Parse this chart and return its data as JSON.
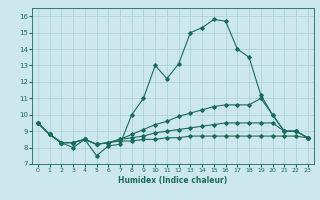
{
  "xlabel": "Humidex (Indice chaleur)",
  "xlim": [
    -0.5,
    23.5
  ],
  "ylim": [
    7,
    16.5
  ],
  "yticks": [
    7,
    8,
    9,
    10,
    11,
    12,
    13,
    14,
    15,
    16
  ],
  "xticks": [
    0,
    1,
    2,
    3,
    4,
    5,
    6,
    7,
    8,
    9,
    10,
    11,
    12,
    13,
    14,
    15,
    16,
    17,
    18,
    19,
    20,
    21,
    22,
    23
  ],
  "bg_color": "#cce8ee",
  "grid_color": "#aacdd6",
  "line_color": "#1a6b5a",
  "lines": [
    [
      9.5,
      8.8,
      8.3,
      8.0,
      8.5,
      7.5,
      8.1,
      8.2,
      10.0,
      11.0,
      13.0,
      12.2,
      13.1,
      15.0,
      15.3,
      15.8,
      15.7,
      14.0,
      13.5,
      11.2,
      10.0,
      9.0,
      9.0,
      8.6
    ],
    [
      9.5,
      8.8,
      8.3,
      8.3,
      8.5,
      8.2,
      8.3,
      8.5,
      8.8,
      9.1,
      9.4,
      9.6,
      9.9,
      10.1,
      10.3,
      10.5,
      10.6,
      10.6,
      10.6,
      11.0,
      10.0,
      9.0,
      9.0,
      8.6
    ],
    [
      9.5,
      8.8,
      8.3,
      8.3,
      8.5,
      8.2,
      8.3,
      8.5,
      8.6,
      8.7,
      8.9,
      9.0,
      9.1,
      9.2,
      9.3,
      9.4,
      9.5,
      9.5,
      9.5,
      9.5,
      9.5,
      9.0,
      9.0,
      8.6
    ],
    [
      9.5,
      8.8,
      8.3,
      8.3,
      8.5,
      8.2,
      8.3,
      8.4,
      8.4,
      8.5,
      8.5,
      8.6,
      8.6,
      8.7,
      8.7,
      8.7,
      8.7,
      8.7,
      8.7,
      8.7,
      8.7,
      8.7,
      8.7,
      8.6
    ]
  ]
}
